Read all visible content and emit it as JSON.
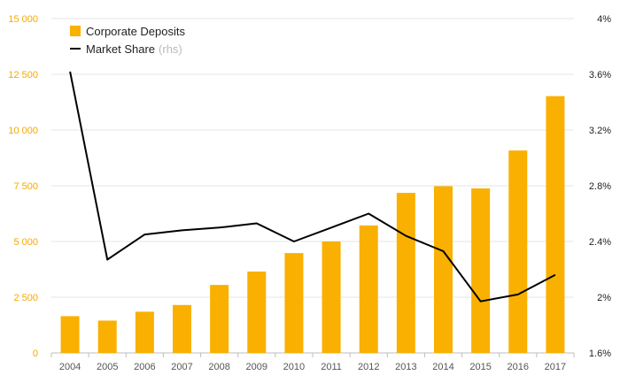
{
  "chart_data": {
    "type": "bar",
    "categories": [
      "2004",
      "2005",
      "2006",
      "2007",
      "2008",
      "2009",
      "2010",
      "2011",
      "2012",
      "2013",
      "2014",
      "2015",
      "2016",
      "2017"
    ],
    "series": [
      {
        "name": "Corporate Deposits",
        "kind": "bar",
        "axis": "left",
        "color": "#f9b000",
        "values": [
          1650,
          1450,
          1850,
          2150,
          3050,
          3650,
          4480,
          5000,
          5720,
          7180,
          7480,
          7380,
          9080,
          11520
        ]
      },
      {
        "name": "Market Share",
        "kind": "line",
        "axis": "right",
        "color": "#000000",
        "values": [
          3.62,
          2.27,
          2.45,
          2.48,
          2.5,
          2.53,
          2.4,
          2.5,
          2.6,
          2.44,
          2.33,
          1.97,
          2.02,
          2.16
        ]
      }
    ],
    "legend": {
      "position": "top-left",
      "items": [
        {
          "label": "Corporate Deposits",
          "note": ""
        },
        {
          "label": "Market Share",
          "note": "(rhs)"
        }
      ]
    },
    "y_left": {
      "ylim": [
        0,
        15000
      ],
      "ticks": [
        0,
        2500,
        5000,
        7500,
        10000,
        12500,
        15000
      ],
      "tick_labels": [
        "0",
        "2 500",
        "5 000",
        "7 500",
        "10 000",
        "12 500",
        "15 000"
      ],
      "color": "#f5a800"
    },
    "y_right": {
      "ylim": [
        1.6,
        4.0
      ],
      "ticks": [
        1.6,
        2.0,
        2.4,
        2.8,
        3.2,
        3.6,
        4.0
      ],
      "tick_labels": [
        "1.6%",
        "2%",
        "2.4%",
        "2.8%",
        "3.2%",
        "3.6%",
        "4%"
      ]
    },
    "grid": true,
    "gridline_color": "#e6e6e6",
    "title": "",
    "xlabel": "",
    "ylabel": ""
  }
}
